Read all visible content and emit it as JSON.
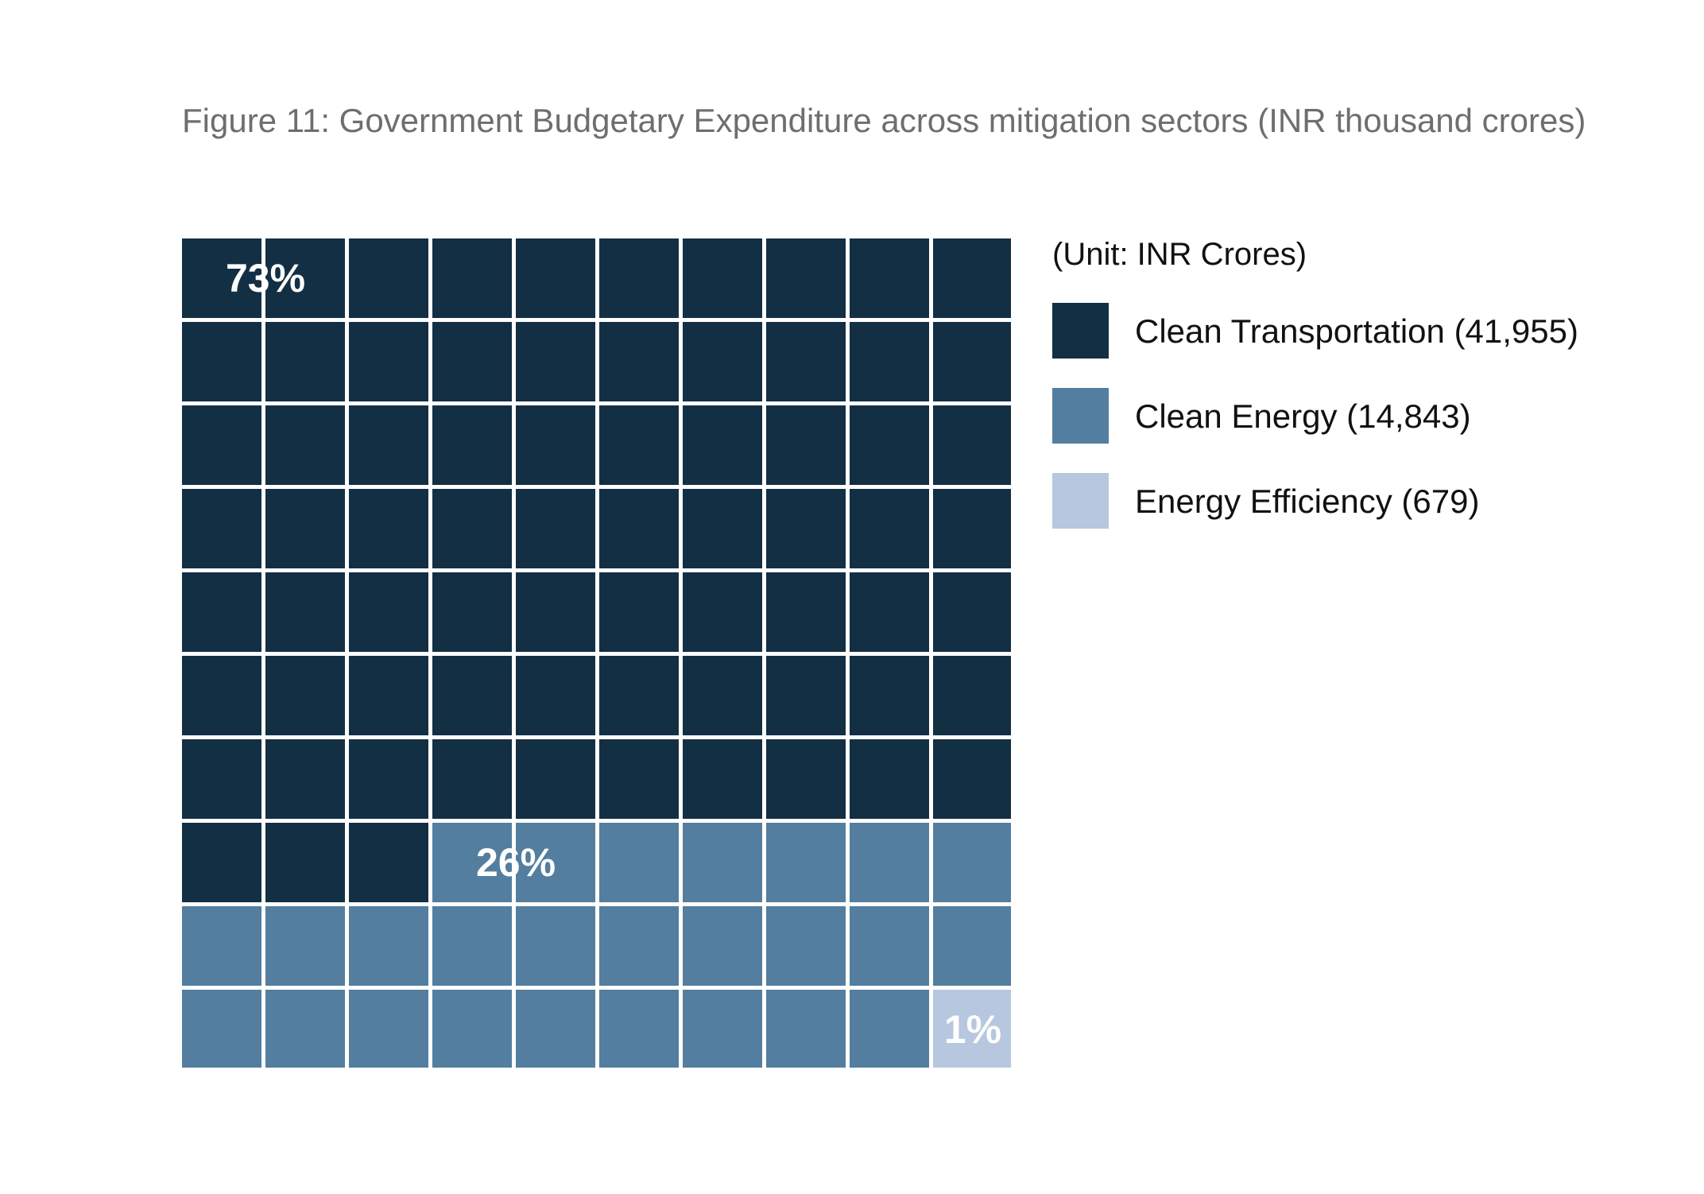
{
  "title": "Figure 11: Government Budgetary Expenditure across mitigation sectors (INR thousand crores)",
  "unit_label": "(Unit: INR Crores)",
  "colors": {
    "clean_transportation": "#132f44",
    "clean_energy": "#537e9f",
    "energy_efficiency": "#b7c7df",
    "background": "#ffffff"
  },
  "legend": [
    {
      "label": "Clean Transportation (41,955)",
      "color": "#132f44"
    },
    {
      "label": "Clean Energy (14,843)",
      "color": "#537e9f"
    },
    {
      "label": "Energy Efficiency (679)",
      "color": "#b7c7df"
    }
  ],
  "chart_data": {
    "type": "waffle",
    "grid": [
      10,
      10
    ],
    "categories": [
      "Clean Transportation",
      "Clean Energy",
      "Energy Efficiency"
    ],
    "values": [
      41955,
      14843,
      679
    ],
    "squares": [
      73,
      26,
      1
    ],
    "percent_labels": [
      "73%",
      "26%",
      "1%"
    ],
    "colors": [
      "#132f44",
      "#537e9f",
      "#b7c7df"
    ]
  }
}
